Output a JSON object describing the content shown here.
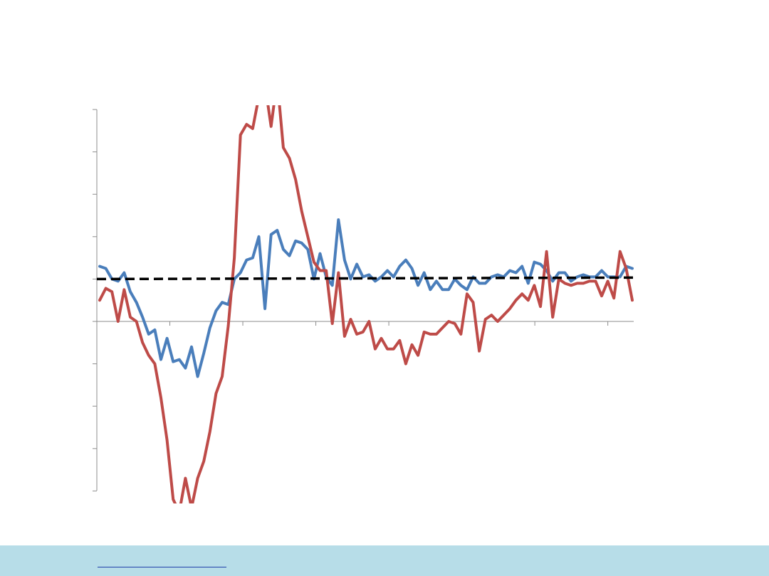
{
  "chart_data": {
    "type": "line",
    "title": "",
    "xlabel": "",
    "ylabel": "",
    "ylim": [
      -4,
      5
    ],
    "xlim": [
      0,
      114
    ],
    "grid": false,
    "x_ticks": [
      0,
      15.5,
      31,
      46.5,
      62,
      77.5,
      93,
      108.5
    ],
    "y_ticks": [
      -4,
      -3,
      -2,
      -1,
      0,
      1,
      2,
      3,
      4,
      5
    ],
    "reference_line": {
      "y": 1.0,
      "style": "dashed",
      "color": "#000000"
    },
    "series": [
      {
        "name": "",
        "color": "#4a7ebb",
        "values": [
          1.3,
          1.25,
          1.0,
          0.95,
          1.15,
          0.7,
          0.45,
          0.1,
          -0.3,
          -0.2,
          -0.9,
          -0.4,
          -0.95,
          -0.9,
          -1.1,
          -0.6,
          -1.3,
          -0.75,
          -0.15,
          0.25,
          0.45,
          0.4,
          1.0,
          1.15,
          1.45,
          1.5,
          2.0,
          0.3,
          2.05,
          2.15,
          1.7,
          1.55,
          1.9,
          1.85,
          1.7,
          1.0,
          1.6,
          1.05,
          0.85,
          2.4,
          1.45,
          1.0,
          1.35,
          1.05,
          1.1,
          0.95,
          1.05,
          1.2,
          1.05,
          1.3,
          1.45,
          1.25,
          0.85,
          1.15,
          0.75,
          0.95,
          0.75,
          0.75,
          1.0,
          0.85,
          0.75,
          1.05,
          0.9,
          0.9,
          1.05,
          1.1,
          1.05,
          1.2,
          1.15,
          1.3,
          0.9,
          1.4,
          1.35,
          1.2,
          0.95,
          1.15,
          1.15,
          0.95,
          1.05,
          1.1,
          1.05,
          1.05,
          1.2,
          1.05,
          1.05,
          1.05,
          1.3,
          1.25
        ]
      },
      {
        "name": "",
        "color": "#be4b48",
        "values": [
          0.5,
          0.78,
          0.7,
          0.0,
          0.75,
          0.1,
          0.0,
          -0.5,
          -0.8,
          -1.0,
          -1.8,
          -2.8,
          -4.2,
          -4.5,
          -3.7,
          -4.4,
          -3.7,
          -3.3,
          -2.6,
          -1.7,
          -1.3,
          -0.1,
          1.5,
          4.4,
          4.65,
          4.55,
          5.3,
          5.6,
          4.6,
          5.7,
          4.1,
          3.85,
          3.35,
          2.6,
          2.0,
          1.4,
          1.2,
          1.2,
          -0.05,
          1.15,
          -0.35,
          0.05,
          -0.3,
          -0.25,
          0.0,
          -0.65,
          -0.4,
          -0.65,
          -0.65,
          -0.45,
          -1.0,
          -0.55,
          -0.8,
          -0.25,
          -0.3,
          -0.3,
          -0.15,
          0.0,
          -0.05,
          -0.3,
          0.65,
          0.45,
          -0.7,
          0.05,
          0.15,
          0.0,
          0.15,
          0.3,
          0.5,
          0.65,
          0.5,
          0.85,
          0.35,
          1.65,
          0.1,
          1.0,
          0.9,
          0.85,
          0.9,
          0.9,
          0.95,
          0.95,
          0.6,
          0.95,
          0.55,
          1.65,
          1.25,
          0.5
        ]
      }
    ]
  }
}
